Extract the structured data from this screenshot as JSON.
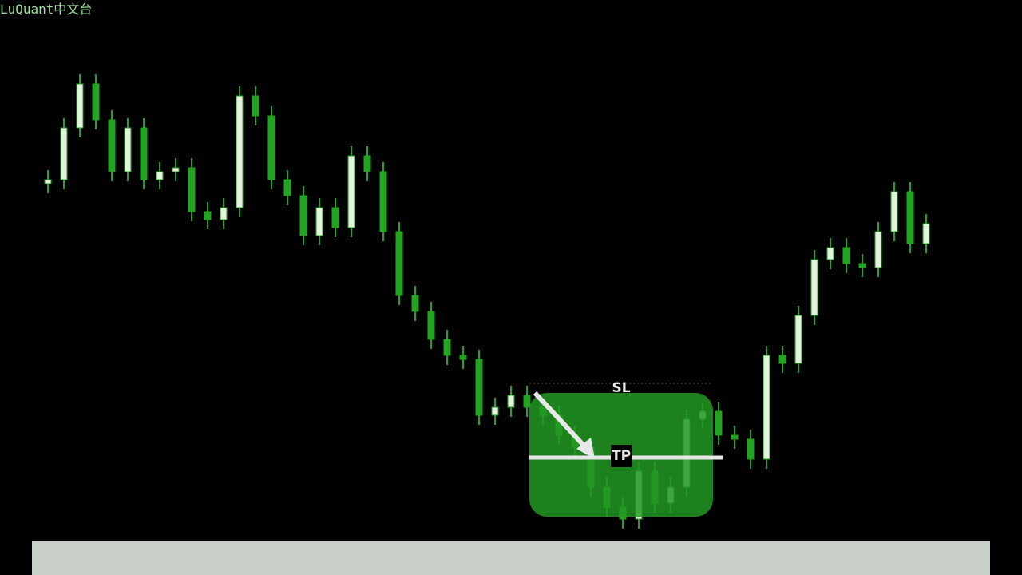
{
  "chart_data": {
    "type": "candlestick",
    "watermark": "LuQuant中文台",
    "categories": [
      null,
      null,
      null,
      null,
      null,
      null,
      null,
      null,
      null,
      null,
      null,
      null,
      null,
      null,
      null,
      null,
      null,
      null,
      null,
      null,
      null,
      null,
      null,
      null,
      null,
      null,
      null,
      null,
      null,
      null,
      null,
      null,
      null,
      null,
      null,
      null,
      null,
      null,
      null,
      null,
      null,
      null,
      null,
      null,
      null,
      null,
      null,
      null,
      null,
      null,
      null,
      null,
      null,
      null,
      null,
      null
    ],
    "open": [
      470,
      475,
      540,
      595,
      550,
      485,
      540,
      475,
      485,
      490,
      435,
      425,
      440,
      580,
      555,
      475,
      455,
      405,
      440,
      415,
      505,
      485,
      410,
      330,
      310,
      275,
      255,
      250,
      180,
      190,
      205,
      190,
      180,
      155,
      140,
      90,
      65,
      50,
      110,
      70,
      90,
      175,
      185,
      155,
      150,
      125,
      255,
      245,
      305,
      375,
      390,
      370,
      365,
      410,
      460,
      395
    ],
    "high": [
      487,
      552,
      607,
      607,
      562,
      552,
      552,
      497,
      502,
      502,
      447,
      452,
      592,
      592,
      567,
      487,
      467,
      452,
      452,
      517,
      517,
      497,
      422,
      342,
      322,
      287,
      267,
      262,
      202,
      217,
      217,
      202,
      192,
      167,
      152,
      102,
      77,
      122,
      122,
      102,
      187,
      197,
      197,
      167,
      162,
      267,
      267,
      317,
      387,
      402,
      402,
      382,
      422,
      472,
      472,
      432
    ],
    "low": [
      458,
      463,
      528,
      538,
      473,
      473,
      463,
      463,
      473,
      423,
      413,
      413,
      428,
      543,
      463,
      443,
      393,
      393,
      403,
      403,
      473,
      398,
      318,
      298,
      263,
      243,
      238,
      168,
      168,
      178,
      178,
      168,
      143,
      128,
      78,
      53,
      38,
      38,
      58,
      58,
      78,
      163,
      143,
      138,
      113,
      113,
      233,
      233,
      293,
      363,
      358,
      353,
      353,
      398,
      383,
      383
    ],
    "close": [
      475,
      540,
      595,
      550,
      485,
      540,
      475,
      485,
      490,
      435,
      425,
      440,
      580,
      555,
      475,
      455,
      405,
      440,
      415,
      505,
      485,
      410,
      330,
      310,
      275,
      255,
      250,
      180,
      190,
      205,
      190,
      180,
      155,
      140,
      90,
      65,
      50,
      110,
      70,
      90,
      175,
      185,
      155,
      150,
      125,
      255,
      245,
      305,
      375,
      390,
      370,
      365,
      410,
      460,
      395,
      420
    ],
    "up_color": "#e6f2e0",
    "down_color": "#22a322",
    "wick_color": "#22a322",
    "ylim": [
      20,
      700
    ],
    "annotations": {
      "stop_loss": "SL",
      "take_profit": "TP"
    }
  }
}
